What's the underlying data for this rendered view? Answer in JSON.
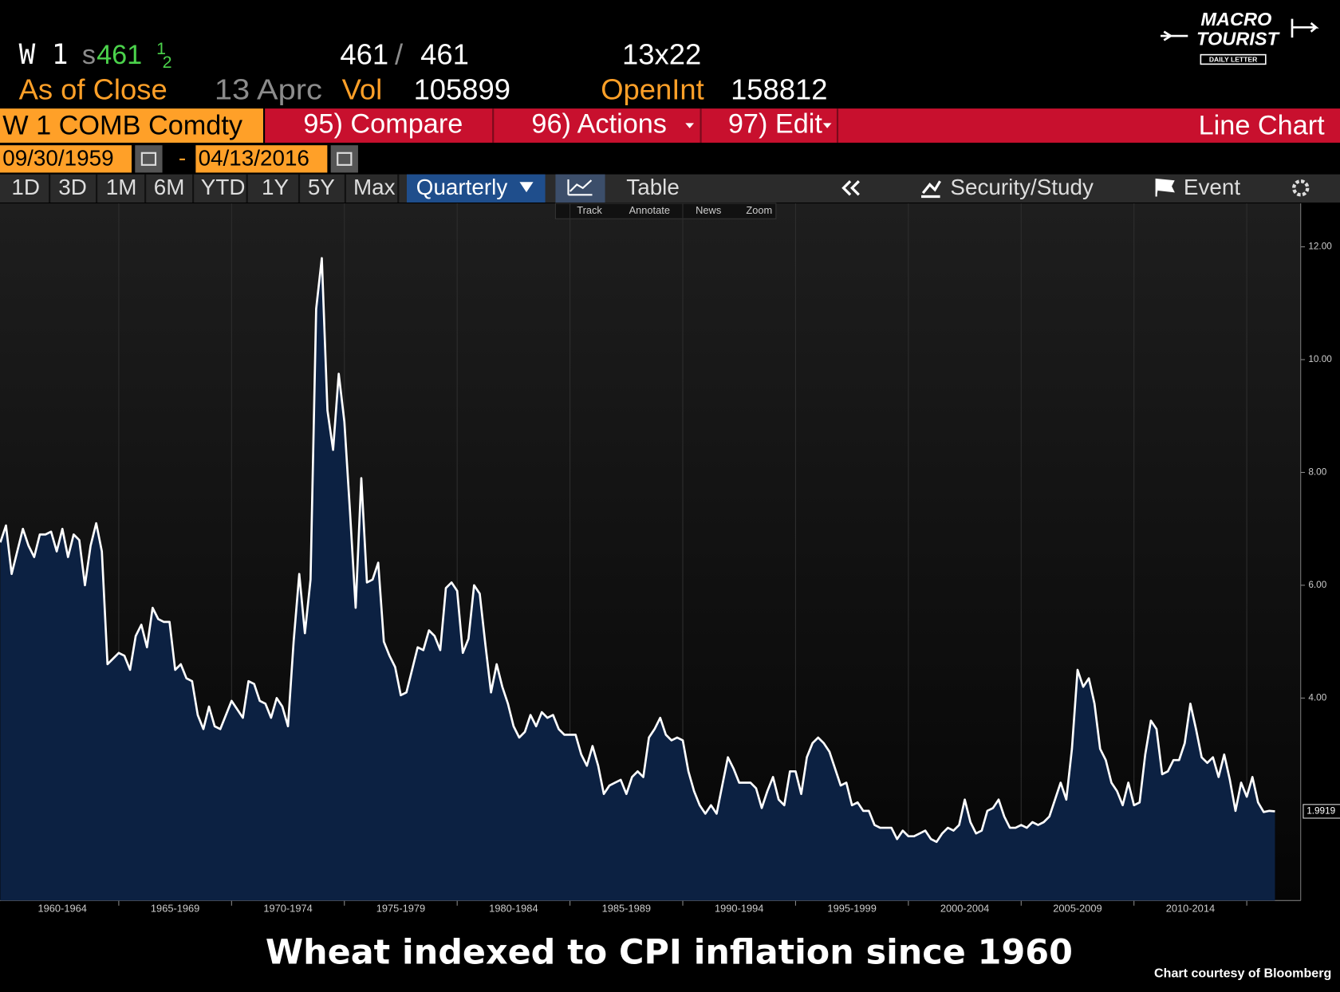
{
  "header": {
    "ticker": "W 1",
    "last_prefix": "s",
    "last": "461",
    "last_frac_num": "1",
    "last_frac_den": "2",
    "bid": "461",
    "bid_ask_sep": "/",
    "ask": "461",
    "size": "13x22",
    "as_of": "As of Close",
    "date": "13 Aprc",
    "vol_label": "Vol",
    "vol": "105899",
    "oi_label": "OpenInt",
    "oi": "158812"
  },
  "logo": {
    "line1": "MACRO",
    "line2": "TOURIST",
    "line3": "DAILY LETTER"
  },
  "toolbar": {
    "security": "W 1 COMB Comdty",
    "buttons": [
      "95) Compare",
      "96) Actions",
      "97) Edit"
    ],
    "view": "Line Chart"
  },
  "range": {
    "start": "09/30/1959",
    "sep": "-",
    "end": "04/13/2016"
  },
  "tabs": [
    "1D",
    "3D",
    "1M",
    "6M",
    "YTD",
    "1Y",
    "5Y",
    "Max"
  ],
  "period": "Quarterly",
  "table": "Table",
  "security_study": "Security/Study",
  "event": "Event",
  "tools": [
    "Track",
    "Annotate",
    "News",
    "Zoom"
  ],
  "chart_data": {
    "type": "line",
    "x": [
      1959.75,
      1960,
      1960.25,
      1960.5,
      1960.75,
      1961,
      1961.25,
      1961.5,
      1961.75,
      1962,
      1962.25,
      1962.5,
      1962.75,
      1963,
      1963.25,
      1963.5,
      1963.75,
      1964,
      1964.25,
      1964.5,
      1964.75,
      1965,
      1965.25,
      1965.5,
      1965.75,
      1966,
      1966.25,
      1966.5,
      1966.75,
      1967,
      1967.25,
      1967.5,
      1967.75,
      1968,
      1968.25,
      1968.5,
      1968.75,
      1969,
      1969.25,
      1969.5,
      1969.75,
      1970,
      1970.25,
      1970.5,
      1970.75,
      1971,
      1971.25,
      1971.5,
      1971.75,
      1972,
      1972.25,
      1972.5,
      1972.75,
      1973,
      1973.25,
      1973.5,
      1973.75,
      1974,
      1974.25,
      1974.5,
      1974.75,
      1975,
      1975.25,
      1975.5,
      1975.75,
      1976,
      1976.25,
      1976.5,
      1976.75,
      1977,
      1977.25,
      1977.5,
      1977.75,
      1978,
      1978.25,
      1978.5,
      1978.75,
      1979,
      1979.25,
      1979.5,
      1979.75,
      1980,
      1980.25,
      1980.5,
      1980.75,
      1981,
      1981.25,
      1981.5,
      1981.75,
      1982,
      1982.25,
      1982.5,
      1982.75,
      1983,
      1983.25,
      1983.5,
      1983.75,
      1984,
      1984.25,
      1984.5,
      1984.75,
      1985,
      1985.25,
      1985.5,
      1985.75,
      1986,
      1986.25,
      1986.5,
      1986.75,
      1987,
      1987.25,
      1987.5,
      1987.75,
      1988,
      1988.25,
      1988.5,
      1988.75,
      1989,
      1989.25,
      1989.5,
      1989.75,
      1990,
      1990.25,
      1990.5,
      1990.75,
      1991,
      1991.25,
      1991.5,
      1991.75,
      1992,
      1992.25,
      1992.5,
      1992.75,
      1993,
      1993.25,
      1993.5,
      1993.75,
      1994,
      1994.25,
      1994.5,
      1994.75,
      1995,
      1995.25,
      1995.5,
      1995.75,
      1996,
      1996.25,
      1996.5,
      1996.75,
      1997,
      1997.25,
      1997.5,
      1997.75,
      1998,
      1998.25,
      1998.5,
      1998.75,
      1999,
      1999.25,
      1999.5,
      1999.75,
      2000,
      2000.25,
      2000.5,
      2000.75,
      2001,
      2001.25,
      2001.5,
      2001.75,
      2002,
      2002.25,
      2002.5,
      2002.75,
      2003,
      2003.25,
      2003.5,
      2003.75,
      2004,
      2004.25,
      2004.5,
      2004.75,
      2005,
      2005.25,
      2005.5,
      2005.75,
      2006,
      2006.25,
      2006.5,
      2006.75,
      2007,
      2007.25,
      2007.5,
      2007.75,
      2008,
      2008.25,
      2008.5,
      2008.75,
      2009,
      2009.25,
      2009.5,
      2009.75,
      2010,
      2010.25,
      2010.5,
      2010.75,
      2011,
      2011.25,
      2011.5,
      2011.75,
      2012,
      2012.25,
      2012.5,
      2012.75,
      2013,
      2013.25,
      2013.5,
      2013.75,
      2014,
      2014.25,
      2014.5,
      2014.75,
      2015,
      2015.25,
      2015.5,
      2015.75,
      2016,
      2016.25
    ],
    "series": [
      {
        "color": "#ffffff",
        "fill": "#0c2142",
        "values": [
          6.76,
          7.06,
          6.2,
          6.6,
          7.0,
          6.7,
          6.5,
          6.9,
          6.9,
          6.95,
          6.6,
          7.0,
          6.5,
          6.9,
          6.8,
          6.0,
          6.7,
          7.1,
          6.6,
          4.6,
          4.7,
          4.8,
          4.75,
          4.5,
          5.1,
          5.3,
          4.9,
          5.6,
          5.4,
          5.35,
          5.35,
          4.5,
          4.6,
          4.35,
          4.3,
          3.7,
          3.45,
          3.85,
          3.5,
          3.45,
          3.7,
          3.95,
          3.8,
          3.65,
          4.3,
          4.25,
          3.95,
          3.9,
          3.65,
          4.0,
          3.85,
          3.5,
          5.0,
          6.2,
          5.15,
          6.1,
          10.9,
          11.8,
          9.1,
          8.4,
          9.75,
          8.9,
          7.3,
          5.6,
          7.9,
          6.05,
          6.1,
          6.4,
          5.0,
          4.75,
          4.55,
          4.05,
          4.1,
          4.5,
          4.9,
          4.85,
          5.2,
          5.1,
          4.85,
          5.95,
          6.05,
          5.9,
          4.8,
          5.05,
          6.0,
          5.85,
          4.95,
          4.1,
          4.6,
          4.2,
          3.9,
          3.5,
          3.3,
          3.4,
          3.7,
          3.5,
          3.75,
          3.65,
          3.7,
          3.45,
          3.35,
          3.35,
          3.35,
          3.0,
          2.8,
          3.15,
          2.8,
          2.3,
          2.45,
          2.5,
          2.55,
          2.3,
          2.6,
          2.7,
          2.6,
          3.3,
          3.45,
          3.65,
          3.35,
          3.25,
          3.3,
          3.25,
          2.7,
          2.35,
          2.1,
          1.95,
          2.1,
          1.95,
          2.45,
          2.95,
          2.75,
          2.5,
          2.5,
          2.5,
          2.4,
          2.05,
          2.35,
          2.6,
          2.2,
          2.1,
          2.7,
          2.7,
          2.3,
          2.95,
          3.2,
          3.3,
          3.2,
          3.05,
          2.75,
          2.45,
          2.5,
          2.1,
          2.15,
          2.0,
          2.0,
          1.75,
          1.7,
          1.7,
          1.7,
          1.5,
          1.65,
          1.55,
          1.55,
          1.6,
          1.65,
          1.5,
          1.45,
          1.6,
          1.7,
          1.65,
          1.75,
          2.2,
          1.8,
          1.6,
          1.65,
          2.0,
          2.05,
          2.2,
          1.9,
          1.7,
          1.7,
          1.75,
          1.7,
          1.8,
          1.75,
          1.8,
          1.9,
          2.2,
          2.5,
          2.2,
          3.1,
          4.5,
          4.2,
          4.35,
          3.9,
          3.1,
          2.9,
          2.5,
          2.35,
          2.1,
          2.5,
          2.1,
          2.15,
          3.0,
          3.6,
          3.45,
          2.65,
          2.7,
          2.9,
          2.9,
          3.2,
          3.9,
          3.45,
          2.95,
          2.85,
          2.95,
          2.6,
          3.0,
          2.55,
          2.0,
          2.5,
          2.25,
          2.6,
          2.15,
          1.98,
          2.0,
          1.9919
        ]
      }
    ],
    "xlim": [
      1959.735,
      2017.39
    ],
    "xticks": [
      {
        "value": 1962.5,
        "label": "1960-1964"
      },
      {
        "value": 1967.5,
        "label": "1965-1969"
      },
      {
        "value": 1972.5,
        "label": "1970-1974"
      },
      {
        "value": 1977.5,
        "label": "1975-1979"
      },
      {
        "value": 1982.5,
        "label": "1980-1984"
      },
      {
        "value": 1987.5,
        "label": "1985-1989"
      },
      {
        "value": 1992.5,
        "label": "1990-1994"
      },
      {
        "value": 1997.5,
        "label": "1995-1999"
      },
      {
        "value": 2002.5,
        "label": "2000-2004"
      },
      {
        "value": 2007.5,
        "label": "2005-2009"
      },
      {
        "value": 2012.5,
        "label": "2010-2014"
      }
    ],
    "ylim": [
      0.41,
      12.74
    ],
    "yticks": [
      {
        "value": 4,
        "label": "4.00"
      },
      {
        "value": 6,
        "label": "6.00"
      },
      {
        "value": 8,
        "label": "8.00"
      },
      {
        "value": 10,
        "label": "10.00"
      },
      {
        "value": 12,
        "label": "12.00"
      }
    ],
    "grid": true
  },
  "caption": "Wheat indexed to CPI inflation since 1960",
  "credit": "Chart courtesy of Bloomberg"
}
